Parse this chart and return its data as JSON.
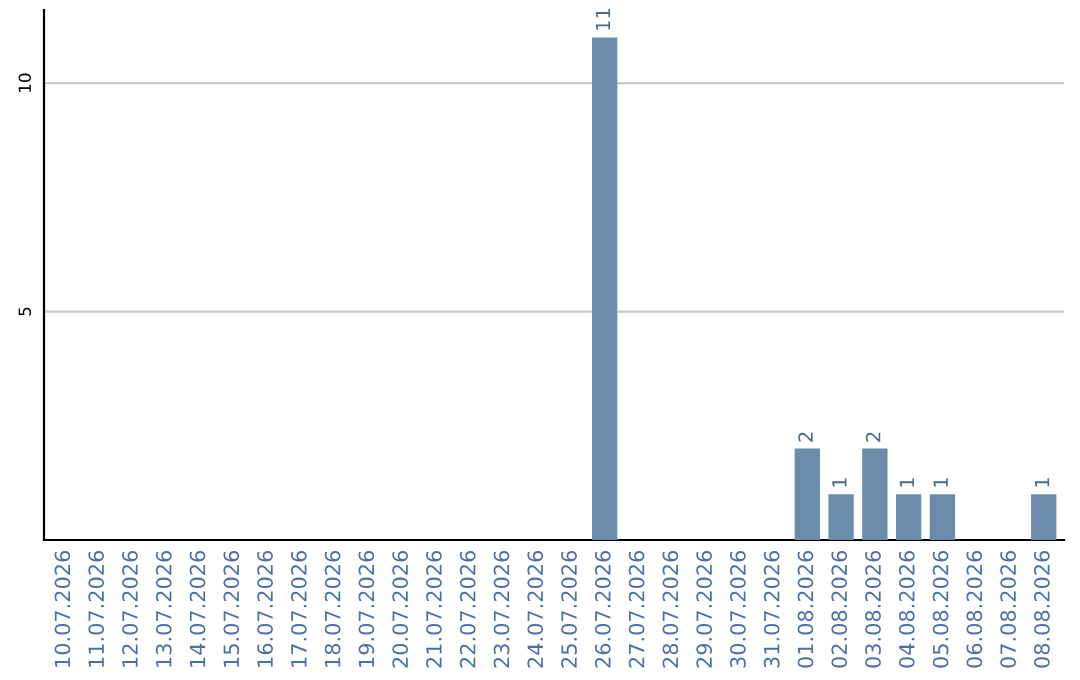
{
  "chart_data": {
    "type": "bar",
    "categories": [
      "10.07.2026",
      "11.07.2026",
      "12.07.2026",
      "13.07.2026",
      "14.07.2026",
      "15.07.2026",
      "16.07.2026",
      "17.07.2026",
      "18.07.2026",
      "19.07.2026",
      "20.07.2026",
      "21.07.2026",
      "22.07.2026",
      "23.07.2026",
      "24.07.2026",
      "25.07.2026",
      "26.07.2026",
      "27.07.2026",
      "28.07.2026",
      "29.07.2026",
      "30.07.2026",
      "31.07.2026",
      "01.08.2026",
      "02.08.2026",
      "03.08.2026",
      "04.08.2026",
      "05.08.2026",
      "06.08.2026",
      "07.08.2026",
      "08.08.2026"
    ],
    "values": [
      0,
      0,
      0,
      0,
      0,
      0,
      0,
      0,
      0,
      0,
      0,
      0,
      0,
      0,
      0,
      0,
      11,
      0,
      0,
      0,
      0,
      0,
      2,
      1,
      2,
      1,
      1,
      0,
      0,
      1
    ],
    "value_labels": [
      null,
      null,
      null,
      null,
      null,
      null,
      null,
      null,
      null,
      null,
      null,
      null,
      null,
      null,
      null,
      null,
      "11",
      null,
      null,
      null,
      null,
      null,
      "2",
      "1",
      "2",
      "1",
      "1",
      null,
      null,
      "1"
    ],
    "color": "#6b8cab",
    "ylim": [
      0,
      11.6
    ],
    "yticks": [
      5,
      10
    ],
    "grid": "y"
  }
}
